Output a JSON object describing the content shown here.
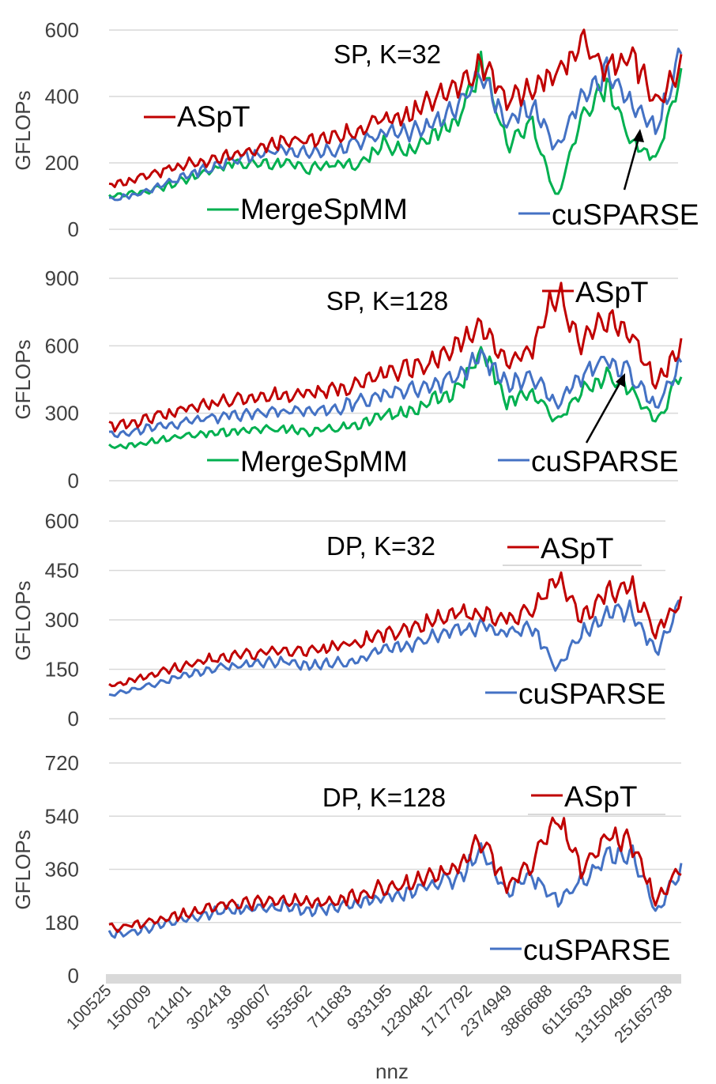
{
  "colors": {
    "aspt": "#c00000",
    "mergespmm": "#00b050",
    "cusparse": "#4472c4",
    "axis_bar": "#d9d9d9"
  },
  "x_axis": {
    "label": "nnz",
    "tick_labels": [
      "100525",
      "150009",
      "211401",
      "302418",
      "390607",
      "553562",
      "711683",
      "933195",
      "1230482",
      "1717792",
      "2374949",
      "3866688",
      "6115633",
      "13150496",
      "25165738"
    ]
  },
  "chart_data": [
    {
      "type": "line",
      "title": "SP, K=32",
      "ylabel": "GFLOPs",
      "ylim": [
        0,
        600
      ],
      "yticks": [
        "0",
        "200",
        "400",
        "600"
      ],
      "series": [
        {
          "name": "ASpT",
          "color_key": "aspt",
          "values": [
            130,
            150,
            170,
            195,
            205,
            225,
            245,
            265,
            270,
            275,
            300,
            330,
            345,
            390,
            430,
            500,
            380,
            420,
            470,
            560,
            480,
            530,
            380,
            480
          ]
        },
        {
          "name": "MergeSpMM",
          "color_key": "mergespmm",
          "values": [
            100,
            110,
            120,
            150,
            175,
            200,
            195,
            200,
            180,
            200,
            190,
            260,
            230,
            280,
            330,
            510,
            250,
            320,
            90,
            340,
            440,
            260,
            210,
            460
          ]
        },
        {
          "name": "cuSPARSE",
          "color_key": "cusparse",
          "values": [
            90,
            100,
            130,
            160,
            185,
            210,
            230,
            240,
            230,
            240,
            260,
            290,
            290,
            320,
            370,
            470,
            310,
            380,
            240,
            400,
            480,
            390,
            300,
            530
          ]
        }
      ],
      "legend": [
        {
          "label": "ASpT",
          "color_key": "aspt"
        },
        {
          "label": "MergeSpMM",
          "color_key": "mergespmm"
        },
        {
          "label": "cuSPARSE",
          "color_key": "cusparse"
        }
      ]
    },
    {
      "type": "line",
      "title": "SP, K=128",
      "ylabel": "GFLOPs",
      "ylim": [
        0,
        900
      ],
      "yticks": [
        "0",
        "300",
        "600",
        "900"
      ],
      "series": [
        {
          "name": "ASpT",
          "color_key": "aspt",
          "values": [
            240,
            260,
            290,
            320,
            340,
            360,
            370,
            380,
            390,
            400,
            430,
            470,
            500,
            540,
            600,
            680,
            520,
            590,
            840,
            600,
            720,
            650,
            420,
            590
          ]
        },
        {
          "name": "MergeSpMM",
          "color_key": "mergespmm",
          "values": [
            150,
            160,
            180,
            200,
            210,
            220,
            230,
            230,
            220,
            230,
            250,
            290,
            300,
            360,
            400,
            580,
            350,
            400,
            260,
            400,
            470,
            400,
            260,
            480
          ]
        },
        {
          "name": "cuSPARSE",
          "color_key": "cusparse",
          "values": [
            200,
            220,
            240,
            260,
            280,
            290,
            300,
            310,
            310,
            320,
            350,
            390,
            400,
            420,
            460,
            560,
            420,
            470,
            340,
            470,
            540,
            470,
            330,
            530
          ]
        }
      ],
      "legend": [
        {
          "label": "ASpT",
          "color_key": "aspt"
        },
        {
          "label": "MergeSpMM",
          "color_key": "mergespmm"
        },
        {
          "label": "cuSPARSE",
          "color_key": "cusparse"
        }
      ]
    },
    {
      "type": "line",
      "title": "DP, K=32",
      "ylabel": "GFLOPs",
      "ylim": [
        0,
        600
      ],
      "yticks": [
        "0",
        "150",
        "300",
        "450",
        "600"
      ],
      "series": [
        {
          "name": "ASpT",
          "color_key": "aspt",
          "values": [
            100,
            120,
            140,
            160,
            180,
            190,
            200,
            210,
            205,
            215,
            230,
            260,
            270,
            300,
            320,
            320,
            300,
            330,
            430,
            300,
            380,
            400,
            260,
            360
          ]
        },
        {
          "name": "cuSPARSE",
          "color_key": "cusparse",
          "values": [
            70,
            90,
            110,
            130,
            150,
            160,
            170,
            175,
            160,
            170,
            180,
            210,
            220,
            250,
            270,
            280,
            260,
            280,
            150,
            260,
            320,
            330,
            200,
            370
          ]
        }
      ],
      "legend": [
        {
          "label": "ASpT",
          "color_key": "aspt"
        },
        {
          "label": "cuSPARSE",
          "color_key": "cusparse"
        }
      ]
    },
    {
      "type": "line",
      "title": "DP, K=128",
      "ylabel": "GFLOPs",
      "ylim": [
        0,
        720
      ],
      "yticks": [
        "0",
        "180",
        "360",
        "540",
        "720"
      ],
      "series": [
        {
          "name": "ASpT",
          "color_key": "aspt",
          "values": [
            160,
            170,
            190,
            210,
            230,
            240,
            250,
            255,
            250,
            255,
            270,
            300,
            310,
            340,
            360,
            460,
            300,
            380,
            540,
            350,
            480,
            450,
            250,
            370
          ]
        },
        {
          "name": "cuSPARSE",
          "color_key": "cusparse",
          "values": [
            140,
            150,
            170,
            190,
            210,
            220,
            230,
            235,
            220,
            230,
            245,
            270,
            280,
            310,
            330,
            420,
            280,
            340,
            250,
            320,
            400,
            420,
            210,
            360
          ]
        }
      ],
      "legend": [
        {
          "label": "ASpT",
          "color_key": "aspt"
        },
        {
          "label": "cuSPARSE",
          "color_key": "cusparse"
        }
      ]
    }
  ]
}
